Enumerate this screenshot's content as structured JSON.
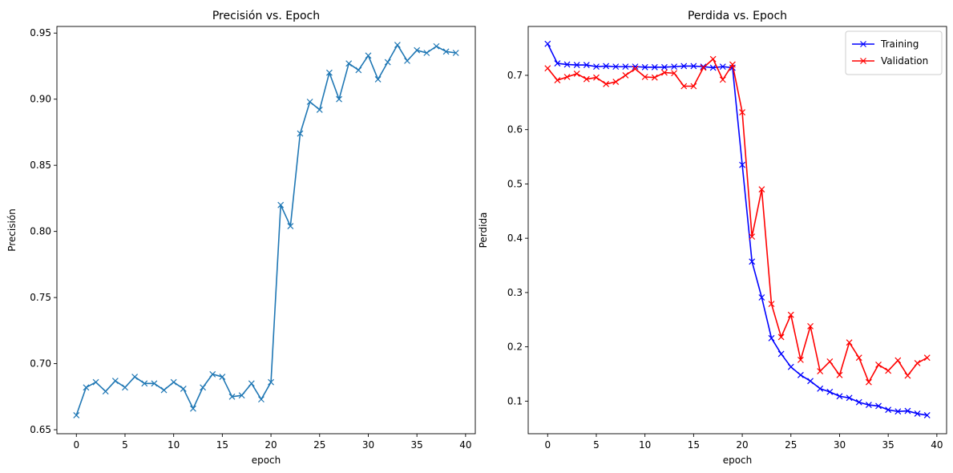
{
  "chart_data": [
    {
      "type": "line",
      "title": "Precisión vs. Epoch",
      "xlabel": "epoch",
      "ylabel": "Precisión",
      "xlim": [
        -2,
        41
      ],
      "ylim": [
        0.647,
        0.955
      ],
      "xticks": [
        0,
        5,
        10,
        15,
        20,
        25,
        30,
        35,
        40
      ],
      "yticks": [
        0.65,
        0.7,
        0.75,
        0.8,
        0.85,
        0.9,
        0.95
      ],
      "ytick_labels": [
        "0.65",
        "0.70",
        "0.75",
        "0.80",
        "0.85",
        "0.90",
        "0.95"
      ],
      "grid": false,
      "legend": "none",
      "series": [
        {
          "color": "#1f77b4",
          "marker": "x",
          "x": [
            0,
            1,
            2,
            3,
            4,
            5,
            6,
            7,
            8,
            9,
            10,
            11,
            12,
            13,
            14,
            15,
            16,
            17,
            18,
            19,
            20,
            21,
            22,
            23,
            24,
            25,
            26,
            27,
            28,
            29,
            30,
            31,
            32,
            33,
            34,
            35,
            36,
            37,
            38,
            39
          ],
          "values": [
            0.661,
            0.682,
            0.686,
            0.679,
            0.687,
            0.682,
            0.69,
            0.685,
            0.685,
            0.68,
            0.686,
            0.681,
            0.666,
            0.682,
            0.692,
            0.69,
            0.675,
            0.676,
            0.685,
            0.673,
            0.686,
            0.82,
            0.804,
            0.874,
            0.898,
            0.892,
            0.92,
            0.9,
            0.927,
            0.922,
            0.933,
            0.915,
            0.928,
            0.941,
            0.929,
            0.937,
            0.935,
            0.94,
            0.936,
            0.935
          ]
        }
      ]
    },
    {
      "type": "line",
      "title": "Perdida vs. Epoch",
      "xlabel": "epoch",
      "ylabel": "Perdida",
      "xlim": [
        -2,
        41
      ],
      "ylim": [
        0.04,
        0.79
      ],
      "xticks": [
        0,
        5,
        10,
        15,
        20,
        25,
        30,
        35,
        40
      ],
      "yticks": [
        0.1,
        0.2,
        0.3,
        0.4,
        0.5,
        0.6,
        0.7
      ],
      "ytick_labels": [
        "0.1",
        "0.2",
        "0.3",
        "0.4",
        "0.5",
        "0.6",
        "0.7"
      ],
      "grid": false,
      "legend": "upper-right",
      "series": [
        {
          "name": "Training",
          "color": "#0000ff",
          "marker": "x",
          "x": [
            0,
            1,
            2,
            3,
            4,
            5,
            6,
            7,
            8,
            9,
            10,
            11,
            12,
            13,
            14,
            15,
            16,
            17,
            18,
            19,
            20,
            21,
            22,
            23,
            24,
            25,
            26,
            27,
            28,
            29,
            30,
            31,
            32,
            33,
            34,
            35,
            36,
            37,
            38,
            39
          ],
          "values": [
            0.758,
            0.722,
            0.72,
            0.719,
            0.719,
            0.716,
            0.717,
            0.716,
            0.716,
            0.716,
            0.715,
            0.715,
            0.715,
            0.716,
            0.717,
            0.717,
            0.716,
            0.714,
            0.716,
            0.714,
            0.535,
            0.357,
            0.291,
            0.216,
            0.187,
            0.163,
            0.148,
            0.137,
            0.123,
            0.117,
            0.109,
            0.106,
            0.098,
            0.093,
            0.091,
            0.084,
            0.081,
            0.082,
            0.077,
            0.074
          ]
        },
        {
          "name": "Validation",
          "color": "#ff0000",
          "marker": "x",
          "x": [
            0,
            1,
            2,
            3,
            4,
            5,
            6,
            7,
            8,
            9,
            10,
            11,
            12,
            13,
            14,
            15,
            16,
            17,
            18,
            19,
            20,
            21,
            22,
            23,
            24,
            25,
            26,
            27,
            28,
            29,
            30,
            31,
            32,
            33,
            34,
            35,
            36,
            37,
            38,
            39
          ],
          "values": [
            0.713,
            0.691,
            0.697,
            0.703,
            0.693,
            0.696,
            0.684,
            0.688,
            0.7,
            0.712,
            0.697,
            0.696,
            0.705,
            0.704,
            0.68,
            0.68,
            0.714,
            0.73,
            0.692,
            0.72,
            0.632,
            0.403,
            0.49,
            0.279,
            0.218,
            0.259,
            0.176,
            0.238,
            0.155,
            0.173,
            0.148,
            0.208,
            0.18,
            0.135,
            0.167,
            0.156,
            0.175,
            0.147,
            0.17,
            0.18
          ]
        }
      ]
    }
  ]
}
